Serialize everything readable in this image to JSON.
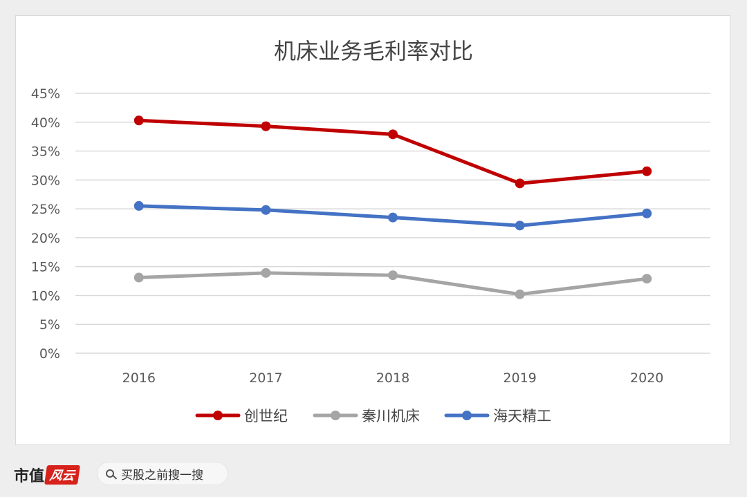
{
  "chart_data": {
    "type": "line",
    "title": "机床业务毛利率对比",
    "categories": [
      "2016",
      "2017",
      "2018",
      "2019",
      "2020"
    ],
    "ylim": [
      0,
      45
    ],
    "yticks": [
      "0%",
      "5%",
      "10%",
      "15%",
      "20%",
      "25%",
      "30%",
      "35%",
      "40%",
      "45%"
    ],
    "grid": true,
    "legend_position": "bottom",
    "series": [
      {
        "name": "创世纪",
        "color": "#c00000",
        "values": [
          40.3,
          39.3,
          37.9,
          29.4,
          31.5
        ]
      },
      {
        "name": "秦川机床",
        "color": "#a5a5a5",
        "values": [
          13.1,
          13.9,
          13.5,
          10.2,
          12.9
        ]
      },
      {
        "name": "海天精工",
        "color": "#4472c4",
        "values": [
          25.5,
          24.8,
          23.5,
          22.1,
          24.2
        ]
      }
    ]
  },
  "footer": {
    "brand": "市值",
    "logo": "风云",
    "search_text": "买股之前搜一搜"
  }
}
